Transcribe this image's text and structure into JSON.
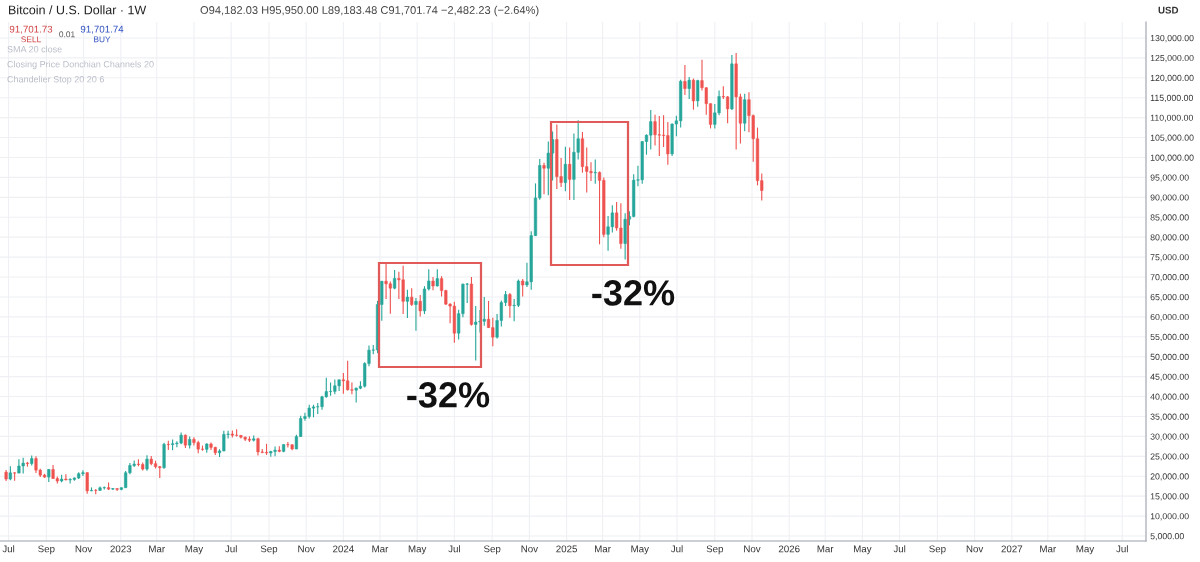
{
  "chart_data": {
    "type": "candlestick",
    "title": "Bitcoin / U.S. Dollar · 1W",
    "subtitle": "O94,182.03 H95,950.00 L89,183.48 C91,701.74 −2,482.23 (−2.64%)",
    "ylabel": "USD",
    "annotations": [
      "91,701.73",
      "SELL",
      "0.01",
      "91,701.74",
      "BUY",
      "SMA 20 close",
      "Closing Price Donchian Channels 20",
      "Chandelier Stop 20 20 6",
      "-32%",
      "-32%"
    ],
    "x": [
      "2022-06-27",
      "2022-07-04",
      "2022-07-11",
      "2022-07-18",
      "2022-07-25",
      "2022-08-01",
      "2022-08-08",
      "2022-08-15",
      "2022-08-22",
      "2022-08-29",
      "2022-09-05",
      "2022-09-12",
      "2022-09-19",
      "2022-09-26",
      "2022-10-03",
      "2022-10-10",
      "2022-10-17",
      "2022-10-24",
      "2022-10-31",
      "2022-11-07",
      "2022-11-14",
      "2022-11-21",
      "2022-11-28",
      "2022-12-05",
      "2022-12-12",
      "2022-12-19",
      "2022-12-26",
      "2023-01-02",
      "2023-01-09",
      "2023-01-16",
      "2023-01-23",
      "2023-01-30",
      "2023-02-06",
      "2023-02-13",
      "2023-02-20",
      "2023-02-27",
      "2023-03-06",
      "2023-03-13",
      "2023-03-20",
      "2023-03-27",
      "2023-04-03",
      "2023-04-10",
      "2023-04-17",
      "2023-04-24",
      "2023-05-01",
      "2023-05-08",
      "2023-05-15",
      "2023-05-22",
      "2023-05-29",
      "2023-06-05",
      "2023-06-12",
      "2023-06-19",
      "2023-06-26",
      "2023-07-03",
      "2023-07-10",
      "2023-07-17",
      "2023-07-24",
      "2023-07-31",
      "2023-08-07",
      "2023-08-14",
      "2023-08-21",
      "2023-08-28",
      "2023-09-04",
      "2023-09-11",
      "2023-09-18",
      "2023-09-25",
      "2023-10-02",
      "2023-10-09",
      "2023-10-16",
      "2023-10-23",
      "2023-10-30",
      "2023-11-06",
      "2023-11-13",
      "2023-11-20",
      "2023-11-27",
      "2023-12-04",
      "2023-12-11",
      "2023-12-18",
      "2023-12-25",
      "2024-01-01",
      "2024-01-08",
      "2024-01-15",
      "2024-01-22",
      "2024-01-29",
      "2024-02-05",
      "2024-02-12",
      "2024-02-19",
      "2024-02-26",
      "2024-03-04",
      "2024-03-11",
      "2024-03-18",
      "2024-03-25",
      "2024-04-01",
      "2024-04-08",
      "2024-04-15",
      "2024-04-22",
      "2024-04-29",
      "2024-05-06",
      "2024-05-13",
      "2024-05-20",
      "2024-05-27",
      "2024-06-03",
      "2024-06-10",
      "2024-06-17",
      "2024-06-24",
      "2024-07-01",
      "2024-07-08",
      "2024-07-15",
      "2024-07-22",
      "2024-07-29",
      "2024-08-05",
      "2024-08-12",
      "2024-08-19",
      "2024-08-26",
      "2024-09-02",
      "2024-09-09",
      "2024-09-16",
      "2024-09-23",
      "2024-09-30",
      "2024-10-07",
      "2024-10-14",
      "2024-10-21",
      "2024-10-28",
      "2024-11-04",
      "2024-11-11",
      "2024-11-18",
      "2024-11-25",
      "2024-12-02",
      "2024-12-09",
      "2024-12-16",
      "2024-12-23",
      "2024-12-30",
      "2025-01-06",
      "2025-01-13",
      "2025-01-20",
      "2025-01-27",
      "2025-02-03",
      "2025-02-10",
      "2025-02-17",
      "2025-02-24",
      "2025-03-03",
      "2025-03-10",
      "2025-03-17",
      "2025-03-24",
      "2025-03-31",
      "2025-04-07",
      "2025-04-14",
      "2025-04-21",
      "2025-04-28",
      "2025-05-05",
      "2025-05-12",
      "2025-05-19",
      "2025-05-26",
      "2025-06-02",
      "2025-06-09",
      "2025-06-16",
      "2025-06-23",
      "2025-06-30",
      "2025-07-07",
      "2025-07-14",
      "2025-07-21",
      "2025-07-28",
      "2025-08-04",
      "2025-08-11",
      "2025-08-18",
      "2025-08-25",
      "2025-09-01",
      "2025-09-08",
      "2025-09-15",
      "2025-09-22",
      "2025-09-29",
      "2025-10-06",
      "2025-10-13",
      "2025-10-20",
      "2025-10-27",
      "2025-11-03",
      "2025-11-10",
      "2025-11-17"
    ],
    "ohlc": [
      [
        21030,
        21540,
        18780,
        19300
      ],
      [
        19300,
        22500,
        19000,
        20850
      ],
      [
        20850,
        21000,
        18900,
        20800
      ],
      [
        20800,
        24280,
        20750,
        22580
      ],
      [
        22580,
        24670,
        20700,
        23300
      ],
      [
        23300,
        23600,
        22400,
        23180
      ],
      [
        23180,
        25200,
        22700,
        24440
      ],
      [
        24440,
        25000,
        20800,
        21530
      ],
      [
        21530,
        21900,
        19800,
        20280
      ],
      [
        20280,
        20600,
        19600,
        19800
      ],
      [
        19800,
        21800,
        18550,
        21700
      ],
      [
        21700,
        22800,
        19350,
        19420
      ],
      [
        19420,
        19950,
        18150,
        18800
      ],
      [
        18800,
        20400,
        18500,
        19300
      ],
      [
        19300,
        20500,
        19000,
        19080
      ],
      [
        19080,
        19500,
        18150,
        19200
      ],
      [
        19200,
        19700,
        18900,
        19570
      ],
      [
        19570,
        21000,
        19300,
        20630
      ],
      [
        20630,
        21500,
        20050,
        20900
      ],
      [
        20900,
        21000,
        15600,
        16330
      ],
      [
        16330,
        17200,
        16250,
        16450
      ],
      [
        16450,
        16800,
        15480,
        16440
      ],
      [
        16440,
        17400,
        16400,
        17100
      ],
      [
        17100,
        17400,
        16700,
        17150
      ],
      [
        17150,
        18400,
        16550,
        16780
      ],
      [
        16780,
        17050,
        16550,
        16900
      ],
      [
        16900,
        16970,
        16300,
        16700
      ],
      [
        16700,
        17200,
        16500,
        17130
      ],
      [
        17130,
        21300,
        17100,
        20880
      ],
      [
        20880,
        23350,
        20500,
        22700
      ],
      [
        22700,
        23950,
        22350,
        23050
      ],
      [
        23050,
        24250,
        22500,
        22940
      ],
      [
        22940,
        23450,
        21450,
        21800
      ],
      [
        21800,
        25250,
        21350,
        24300
      ],
      [
        24300,
        25100,
        22750,
        23150
      ],
      [
        23150,
        23900,
        21950,
        22400
      ],
      [
        22400,
        22600,
        19550,
        22150
      ],
      [
        22150,
        28400,
        21900,
        28000
      ],
      [
        28000,
        28900,
        26600,
        27950
      ],
      [
        27950,
        29200,
        26500,
        28170
      ],
      [
        28170,
        28800,
        27300,
        28330
      ],
      [
        28330,
        31000,
        28000,
        30300
      ],
      [
        30300,
        30500,
        27100,
        27800
      ],
      [
        27800,
        30000,
        26950,
        29250
      ],
      [
        29250,
        29800,
        27700,
        28450
      ],
      [
        28450,
        28900,
        25800,
        26800
      ],
      [
        26800,
        27700,
        26400,
        26750
      ],
      [
        26750,
        28300,
        25900,
        28100
      ],
      [
        28100,
        28450,
        26600,
        27250
      ],
      [
        27250,
        27400,
        25350,
        25900
      ],
      [
        25900,
        26800,
        24800,
        26350
      ],
      [
        26350,
        31400,
        26250,
        30500
      ],
      [
        30500,
        31400,
        29500,
        30600
      ],
      [
        30600,
        31500,
        29700,
        30300
      ],
      [
        30300,
        31800,
        29950,
        30250
      ],
      [
        30250,
        30350,
        29500,
        29800
      ],
      [
        29800,
        30000,
        28850,
        29300
      ],
      [
        29300,
        30000,
        28600,
        29050
      ],
      [
        29050,
        30250,
        28700,
        29400
      ],
      [
        29400,
        29650,
        25200,
        26100
      ],
      [
        26100,
        26850,
        25800,
        26000
      ],
      [
        26000,
        28150,
        25350,
        25850
      ],
      [
        25850,
        26400,
        24900,
        26200
      ],
      [
        26200,
        27450,
        25050,
        26550
      ],
      [
        26550,
        27500,
        26000,
        26250
      ],
      [
        26250,
        28000,
        26000,
        27950
      ],
      [
        27950,
        28600,
        27200,
        27900
      ],
      [
        27900,
        28000,
        26550,
        26850
      ],
      [
        26850,
        30400,
        26800,
        29950
      ],
      [
        29950,
        35200,
        29900,
        34500
      ],
      [
        34500,
        35950,
        33900,
        35000
      ],
      [
        35000,
        37950,
        34500,
        37100
      ],
      [
        37100,
        37950,
        34800,
        37400
      ],
      [
        37400,
        38400,
        35650,
        37450
      ],
      [
        37450,
        40200,
        36700,
        39950
      ],
      [
        39950,
        44700,
        39700,
        41250
      ],
      [
        41250,
        43500,
        40200,
        41300
      ],
      [
        41300,
        44300,
        40550,
        42700
      ],
      [
        42700,
        44300,
        41400,
        44200
      ],
      [
        44200,
        45900,
        40700,
        43950
      ],
      [
        43950,
        49000,
        41500,
        41700
      ],
      [
        41700,
        43550,
        40550,
        41600
      ],
      [
        41600,
        42250,
        38500,
        42100
      ],
      [
        42100,
        43850,
        41850,
        42600
      ],
      [
        42600,
        48600,
        42300,
        48300
      ],
      [
        48300,
        52800,
        47600,
        51650
      ],
      [
        51650,
        52950,
        50600,
        51700
      ],
      [
        51700,
        64000,
        50900,
        63100
      ],
      [
        63100,
        69000,
        59000,
        68950
      ],
      [
        68950,
        73750,
        64500,
        68300
      ],
      [
        68300,
        68900,
        60800,
        67200
      ],
      [
        67200,
        71750,
        66900,
        69650
      ],
      [
        69650,
        71300,
        64500,
        69300
      ],
      [
        69300,
        72800,
        60700,
        63900
      ],
      [
        63900,
        66800,
        59700,
        64950
      ],
      [
        64950,
        67200,
        62700,
        63100
      ],
      [
        63100,
        64750,
        56500,
        63900
      ],
      [
        63900,
        65500,
        60100,
        61500
      ],
      [
        61500,
        67700,
        60700,
        67000
      ],
      [
        67000,
        71950,
        66600,
        69000
      ],
      [
        69000,
        70000,
        66700,
        67750
      ],
      [
        67750,
        71950,
        67600,
        69600
      ],
      [
        69600,
        70200,
        65100,
        66600
      ],
      [
        66600,
        66800,
        63000,
        63200
      ],
      [
        63200,
        63400,
        58400,
        62700
      ],
      [
        62700,
        63800,
        53500,
        55900
      ],
      [
        55900,
        61800,
        54300,
        60800
      ],
      [
        60800,
        68350,
        59900,
        68200
      ],
      [
        68200,
        68500,
        63500,
        68250
      ],
      [
        68250,
        70000,
        57800,
        58100
      ],
      [
        58100,
        62700,
        49050,
        58700
      ],
      [
        58700,
        61700,
        56100,
        58900
      ],
      [
        58900,
        65000,
        57800,
        59400
      ],
      [
        59400,
        64000,
        57200,
        57300
      ],
      [
        57300,
        59800,
        52600,
        54900
      ],
      [
        54900,
        60700,
        54600,
        59100
      ],
      [
        59100,
        64100,
        57600,
        63600
      ],
      [
        63600,
        66500,
        62700,
        65600
      ],
      [
        65600,
        66000,
        59800,
        62800
      ],
      [
        62800,
        64500,
        58900,
        62900
      ],
      [
        62900,
        69400,
        62500,
        69000
      ],
      [
        69000,
        69500,
        65100,
        68000
      ],
      [
        68000,
        73600,
        67500,
        68800
      ],
      [
        68800,
        81500,
        66800,
        80400
      ],
      [
        80400,
        93500,
        80300,
        89850
      ],
      [
        89850,
        99600,
        89400,
        98000
      ],
      [
        98000,
        98700,
        90800,
        97300
      ],
      [
        97300,
        104000,
        90500,
        101100
      ],
      [
        101100,
        106500,
        94200,
        104500
      ],
      [
        104500,
        108300,
        92100,
        95200
      ],
      [
        95200,
        99900,
        92600,
        93700
      ],
      [
        93700,
        102700,
        91500,
        98300
      ],
      [
        98300,
        102500,
        89300,
        94500
      ],
      [
        94500,
        106000,
        89300,
        101300
      ],
      [
        101300,
        109350,
        99500,
        104700
      ],
      [
        104700,
        106400,
        96200,
        97700
      ],
      [
        97700,
        102500,
        91200,
        96500
      ],
      [
        96500,
        98800,
        94100,
        96150
      ],
      [
        96150,
        99500,
        93400,
        96250
      ],
      [
        96250,
        96500,
        78200,
        94250
      ],
      [
        94250,
        95000,
        80000,
        80700
      ],
      [
        80700,
        85300,
        76600,
        82600
      ],
      [
        82600,
        88000,
        81200,
        86100
      ],
      [
        86100,
        88800,
        81600,
        82300
      ],
      [
        82300,
        88500,
        77100,
        78400
      ],
      [
        78400,
        86000,
        74400,
        84500
      ],
      [
        84500,
        86500,
        83000,
        85200
      ],
      [
        85200,
        95800,
        85000,
        94300
      ],
      [
        94300,
        97900,
        92800,
        94400
      ],
      [
        94400,
        104100,
        93400,
        104000
      ],
      [
        104000,
        105800,
        100700,
        105600
      ],
      [
        105600,
        111900,
        102000,
        109000
      ],
      [
        109000,
        110700,
        103000,
        105700
      ],
      [
        105700,
        110400,
        100400,
        105600
      ],
      [
        105600,
        110600,
        102600,
        105500
      ],
      [
        105500,
        108900,
        98200,
        100900
      ],
      [
        100900,
        108500,
        100400,
        108400
      ],
      [
        108400,
        110500,
        105300,
        109200
      ],
      [
        109200,
        119500,
        107500,
        119100
      ],
      [
        119100,
        123200,
        115700,
        117300
      ],
      [
        117300,
        120200,
        114700,
        119400
      ],
      [
        119400,
        119800,
        112000,
        114200
      ],
      [
        114200,
        119500,
        112700,
        119300
      ],
      [
        119300,
        124500,
        116800,
        117500
      ],
      [
        117500,
        117600,
        110700,
        113500
      ],
      [
        113500,
        113600,
        107300,
        108300
      ],
      [
        108300,
        113400,
        107300,
        111200
      ],
      [
        111200,
        116800,
        110600,
        115300
      ],
      [
        115300,
        117900,
        114700,
        115200
      ],
      [
        115200,
        115400,
        108600,
        112200
      ],
      [
        112200,
        125700,
        111900,
        123500
      ],
      [
        123500,
        126200,
        102000,
        115200
      ],
      [
        115200,
        116000,
        103500,
        108600
      ],
      [
        108600,
        116000,
        106600,
        114500
      ],
      [
        114500,
        116400,
        106300,
        110500
      ],
      [
        110500,
        110800,
        98900,
        104700
      ],
      [
        104700,
        107500,
        93000,
        94200
      ],
      [
        94182.03,
        95950,
        89183.48,
        91701.74
      ]
    ],
    "colors": [
      "#ef5350",
      "#26a69a",
      "#ef5350",
      "#26a69a",
      "#26a69a",
      "#ef5350",
      "#26a69a",
      "#ef5350",
      "#ef5350",
      "#ef5350",
      "#26a69a",
      "#ef5350",
      "#ef5350",
      "#26a69a",
      "#ef5350",
      "#26a69a",
      "#26a69a",
      "#26a69a",
      "#26a69a",
      "#ef5350",
      "#26a69a",
      "#ef5350",
      "#26a69a",
      "#26a69a",
      "#ef5350",
      "#26a69a",
      "#ef5350",
      "#26a69a",
      "#26a69a",
      "#26a69a",
      "#26a69a",
      "#ef5350",
      "#ef5350",
      "#26a69a",
      "#ef5350",
      "#ef5350",
      "#ef5350",
      "#26a69a",
      "#ef5350",
      "#26a69a",
      "#26a69a",
      "#26a69a",
      "#ef5350",
      "#26a69a",
      "#ef5350",
      "#ef5350",
      "#ef5350",
      "#26a69a",
      "#ef5350",
      "#ef5350",
      "#26a69a",
      "#26a69a",
      "#26a69a",
      "#ef5350",
      "#ef5350",
      "#ef5350",
      "#ef5350",
      "#ef5350",
      "#26a69a",
      "#ef5350",
      "#ef5350",
      "#ef5350",
      "#26a69a",
      "#26a69a",
      "#ef5350",
      "#26a69a",
      "#ef5350",
      "#ef5350",
      "#26a69a",
      "#26a69a",
      "#26a69a",
      "#26a69a",
      "#26a69a",
      "#26a69a",
      "#26a69a",
      "#26a69a",
      "#26a69a",
      "#26a69a",
      "#26a69a",
      "#ef5350",
      "#ef5350",
      "#ef5350",
      "#26a69a",
      "#26a69a",
      "#26a69a",
      "#26a69a",
      "#26a69a",
      "#26a69a",
      "#26a69a",
      "#ef5350",
      "#ef5350",
      "#26a69a",
      "#ef5350",
      "#ef5350",
      "#26a69a",
      "#ef5350",
      "#26a69a",
      "#ef5350",
      "#26a69a",
      "#26a69a",
      "#ef5350",
      "#26a69a",
      "#ef5350",
      "#ef5350",
      "#ef5350",
      "#ef5350",
      "#26a69a",
      "#26a69a",
      "#26a69a",
      "#ef5350",
      "#26a69a",
      "#26a69a",
      "#26a69a",
      "#ef5350",
      "#ef5350",
      "#26a69a",
      "#26a69a",
      "#26a69a",
      "#ef5350",
      "#26a69a",
      "#26a69a",
      "#ef5350",
      "#26a69a",
      "#26a69a",
      "#26a69a",
      "#26a69a",
      "#ef5350",
      "#26a69a",
      "#26a69a",
      "#ef5350",
      "#ef5350",
      "#26a69a",
      "#ef5350",
      "#26a69a",
      "#26a69a",
      "#ef5350",
      "#ef5350",
      "#ef5350",
      "#26a69a",
      "#ef5350",
      "#ef5350",
      "#26a69a",
      "#26a69a",
      "#ef5350",
      "#ef5350",
      "#26a69a",
      "#26a69a",
      "#26a69a",
      "#26a69a",
      "#26a69a",
      "#26a69a",
      "#26a69a",
      "#ef5350",
      "#ef5350",
      "#ef5350",
      "#ef5350",
      "#26a69a",
      "#26a69a",
      "#26a69a",
      "#ef5350",
      "#26a69a",
      "#ef5350",
      "#26a69a",
      "#ef5350",
      "#ef5350",
      "#ef5350",
      "#26a69a",
      "#26a69a",
      "#ef5350",
      "#ef5350",
      "#26a69a",
      "#ef5350",
      "#ef5350",
      "#26a69a",
      "#ef5350",
      "#ef5350",
      "#ef5350",
      "#ef5350"
    ],
    "xlim": [
      "2022-06-17",
      "2027-08-09"
    ],
    "xticks": [
      {
        "value": "2022-07-01",
        "label": "Jul"
      },
      {
        "value": "2022-09-01",
        "label": "Sep"
      },
      {
        "value": "2022-11-01",
        "label": "Nov"
      },
      {
        "value": "2023-01-01",
        "label": "2023"
      },
      {
        "value": "2023-03-01",
        "label": "Mar"
      },
      {
        "value": "2023-05-01",
        "label": "May"
      },
      {
        "value": "2023-07-01",
        "label": "Jul"
      },
      {
        "value": "2023-09-01",
        "label": "Sep"
      },
      {
        "value": "2023-11-01",
        "label": "Nov"
      },
      {
        "value": "2024-01-01",
        "label": "2024"
      },
      {
        "value": "2024-03-01",
        "label": "Mar"
      },
      {
        "value": "2024-05-01",
        "label": "May"
      },
      {
        "value": "2024-07-01",
        "label": "Jul"
      },
      {
        "value": "2024-09-01",
        "label": "Sep"
      },
      {
        "value": "2024-11-01",
        "label": "Nov"
      },
      {
        "value": "2025-01-01",
        "label": "2025"
      },
      {
        "value": "2025-03-01",
        "label": "Mar"
      },
      {
        "value": "2025-05-01",
        "label": "May"
      },
      {
        "value": "2025-07-01",
        "label": "Jul"
      },
      {
        "value": "2025-09-01",
        "label": "Sep"
      },
      {
        "value": "2025-11-01",
        "label": "Nov"
      },
      {
        "value": "2026-01-01",
        "label": "2026"
      },
      {
        "value": "2026-03-01",
        "label": "Mar"
      },
      {
        "value": "2026-05-01",
        "label": "May"
      },
      {
        "value": "2026-07-01",
        "label": "Jul"
      },
      {
        "value": "2026-09-01",
        "label": "Sep"
      },
      {
        "value": "2026-11-01",
        "label": "Nov"
      },
      {
        "value": "2027-01-01",
        "label": "2027"
      },
      {
        "value": "2027-03-01",
        "label": "Mar"
      },
      {
        "value": "2027-05-01",
        "label": "May"
      },
      {
        "value": "2027-07-01",
        "label": "Jul"
      }
    ],
    "ylim": [
      3750,
      134000
    ],
    "yticks": [
      {
        "value": 5000,
        "label": "5,000.00"
      },
      {
        "value": 10000,
        "label": "10,000.00"
      },
      {
        "value": 15000,
        "label": "15,000.00"
      },
      {
        "value": 20000,
        "label": "20,000.00"
      },
      {
        "value": 25000,
        "label": "25,000.00"
      },
      {
        "value": 30000,
        "label": "30,000.00"
      },
      {
        "value": 35000,
        "label": "35,000.00"
      },
      {
        "value": 40000,
        "label": "40,000.00"
      },
      {
        "value": 45000,
        "label": "45,000.00"
      },
      {
        "value": 50000,
        "label": "50,000.00"
      },
      {
        "value": 55000,
        "label": "55,000.00"
      },
      {
        "value": 60000,
        "label": "60,000.00"
      },
      {
        "value": 65000,
        "label": "65,000.00"
      },
      {
        "value": 70000,
        "label": "70,000.00"
      },
      {
        "value": 75000,
        "label": "75,000.00"
      },
      {
        "value": 80000,
        "label": "80,000.00"
      },
      {
        "value": 85000,
        "label": "85,000.00"
      },
      {
        "value": 90000,
        "label": "90,000.00"
      },
      {
        "value": 95000,
        "label": "95,000.00"
      },
      {
        "value": 100000,
        "label": "100,000.00"
      },
      {
        "value": 105000,
        "label": "105,000.00"
      },
      {
        "value": 110000,
        "label": "110,000.00"
      },
      {
        "value": 115000,
        "label": "115,000.00"
      },
      {
        "value": 120000,
        "label": "120,000.00"
      },
      {
        "value": 125000,
        "label": "125,000.00"
      },
      {
        "value": 130000,
        "label": "130,000.00"
      }
    ],
    "grid": true
  }
}
